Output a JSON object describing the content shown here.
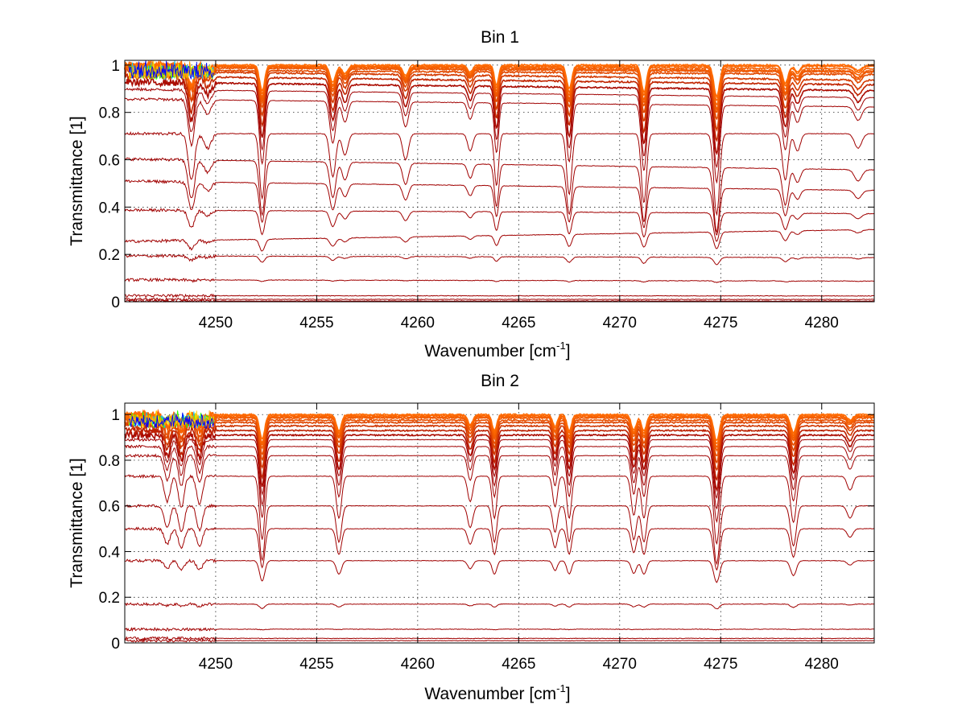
{
  "colors": {
    "background": "#ffffff",
    "axis": "#000000",
    "grid": "#000000",
    "series_dark": "#a00000",
    "series_bright": "#ff6a00",
    "noise_colors": [
      "#00c8ff",
      "#2aff00",
      "#ffd400",
      "#ff9a00",
      "#0000ff"
    ]
  },
  "chart_data": [
    {
      "type": "line",
      "title": "Bin 1",
      "xlabel": "Wavenumber [cm",
      "xlabel_sup": "-1",
      "xlabel_close": "]",
      "ylabel": "Transmittance [1]",
      "xlim": [
        4245.5,
        4282.6
      ],
      "ylim": [
        0,
        1.02
      ],
      "grid": true,
      "xticks": [
        4250,
        4255,
        4260,
        4265,
        4270,
        4275,
        4280
      ],
      "xtick_labels": [
        "4250",
        "4255",
        "4260",
        "4265",
        "4270",
        "4275",
        "4280"
      ],
      "yticks": [
        0,
        0.2,
        0.4,
        0.6,
        0.8,
        1
      ],
      "ytick_labels": [
        "0",
        "0.2",
        "0.4",
        "0.6",
        "0.8",
        "1"
      ],
      "series_description": "family of transmittance spectra, continuum level per curve",
      "continuum_levels": [
        0.003,
        0.01,
        0.025,
        0.09,
        0.19,
        0.28,
        0.38,
        0.49,
        0.58,
        0.71,
        0.84,
        0.88,
        0.91,
        0.935,
        0.955,
        0.97,
        0.98,
        0.985,
        0.99,
        0.995,
        1.0
      ],
      "continuum_tilt": [
        -0.02,
        -0.02,
        -0.02,
        -0.03,
        -0.02,
        0.09,
        -0.02,
        -0.04,
        -0.04,
        0.0,
        -0.02,
        -0.02,
        -0.02,
        -0.02,
        -0.02,
        -0.01,
        -0.01,
        -0.01,
        -0.005,
        0.0,
        0.0
      ],
      "absorption_lines": [
        {
          "x": 4248.8,
          "depth": 0.32,
          "width": 0.22
        },
        {
          "x": 4249.6,
          "depth": 0.1,
          "width": 0.25
        },
        {
          "x": 4252.3,
          "depth": 0.45,
          "width": 0.18
        },
        {
          "x": 4255.8,
          "depth": 0.3,
          "width": 0.2
        },
        {
          "x": 4256.4,
          "depth": 0.15,
          "width": 0.2
        },
        {
          "x": 4259.4,
          "depth": 0.18,
          "width": 0.2
        },
        {
          "x": 4262.6,
          "depth": 0.12,
          "width": 0.18
        },
        {
          "x": 4263.9,
          "depth": 0.36,
          "width": 0.15
        },
        {
          "x": 4267.5,
          "depth": 0.42,
          "width": 0.18
        },
        {
          "x": 4271.2,
          "depth": 0.48,
          "width": 0.18
        },
        {
          "x": 4274.8,
          "depth": 0.56,
          "width": 0.2
        },
        {
          "x": 4278.2,
          "depth": 0.32,
          "width": 0.2
        },
        {
          "x": 4278.8,
          "depth": 0.12,
          "width": 0.2
        },
        {
          "x": 4281.8,
          "depth": 0.1,
          "width": 0.25
        }
      ]
    },
    {
      "type": "line",
      "title": "Bin 2",
      "xlabel": "Wavenumber [cm",
      "xlabel_sup": "-1",
      "xlabel_close": "]",
      "ylabel": "Transmittance [1]",
      "xlim": [
        4245.5,
        4282.6
      ],
      "ylim": [
        0,
        1.05
      ],
      "grid": true,
      "xticks": [
        4250,
        4255,
        4260,
        4265,
        4270,
        4275,
        4280
      ],
      "xtick_labels": [
        "4250",
        "4255",
        "4260",
        "4265",
        "4270",
        "4275",
        "4280"
      ],
      "yticks": [
        0,
        0.2,
        0.4,
        0.6,
        0.8,
        1
      ],
      "ytick_labels": [
        "0",
        "0.2",
        "0.4",
        "0.6",
        "0.8",
        "1"
      ],
      "series_description": "family of transmittance spectra, continuum level per curve",
      "continuum_levels": [
        0.01,
        0.02,
        0.06,
        0.17,
        0.36,
        0.5,
        0.6,
        0.73,
        0.82,
        0.86,
        0.89,
        0.91,
        0.93,
        0.95,
        0.965,
        0.975,
        0.985,
        0.99,
        0.995,
        1.0
      ],
      "continuum_tilt": [
        0.0,
        0.0,
        0.0,
        0.0,
        0.0,
        0.0,
        0.0,
        0.0,
        0.0,
        0.0,
        0.0,
        0.0,
        0.0,
        0.0,
        0.0,
        0.0,
        0.0,
        0.0,
        0.0,
        0.0
      ],
      "absorption_lines": [
        {
          "x": 4247.6,
          "depth": 0.18,
          "width": 0.2
        },
        {
          "x": 4248.3,
          "depth": 0.22,
          "width": 0.2
        },
        {
          "x": 4249.2,
          "depth": 0.2,
          "width": 0.2
        },
        {
          "x": 4252.3,
          "depth": 0.45,
          "width": 0.18
        },
        {
          "x": 4256.1,
          "depth": 0.3,
          "width": 0.18
        },
        {
          "x": 4262.6,
          "depth": 0.18,
          "width": 0.18
        },
        {
          "x": 4263.8,
          "depth": 0.3,
          "width": 0.16
        },
        {
          "x": 4266.8,
          "depth": 0.22,
          "width": 0.16
        },
        {
          "x": 4267.5,
          "depth": 0.3,
          "width": 0.16
        },
        {
          "x": 4270.7,
          "depth": 0.28,
          "width": 0.18
        },
        {
          "x": 4271.2,
          "depth": 0.3,
          "width": 0.18
        },
        {
          "x": 4274.8,
          "depth": 0.48,
          "width": 0.2
        },
        {
          "x": 4278.6,
          "depth": 0.33,
          "width": 0.2
        },
        {
          "x": 4281.4,
          "depth": 0.1,
          "width": 0.2
        }
      ]
    }
  ]
}
